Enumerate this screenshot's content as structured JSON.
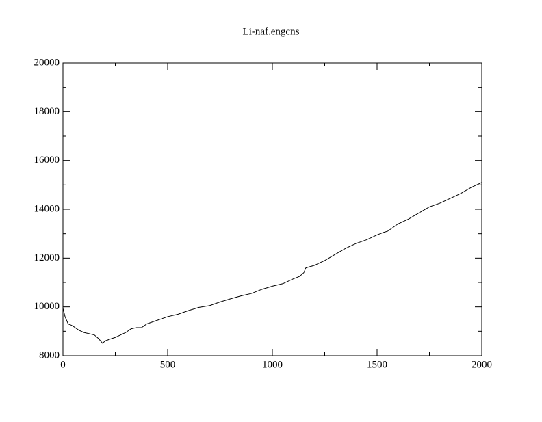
{
  "chart_data": {
    "type": "line",
    "title": "Li-naf.engcns",
    "x": [
      0,
      10,
      25,
      40,
      50,
      75,
      100,
      125,
      150,
      170,
      190,
      200,
      225,
      250,
      275,
      300,
      325,
      350,
      375,
      400,
      450,
      500,
      550,
      600,
      650,
      700,
      750,
      800,
      850,
      900,
      950,
      1000,
      1050,
      1100,
      1130,
      1150,
      1160,
      1200,
      1250,
      1300,
      1350,
      1400,
      1450,
      1500,
      1530,
      1550,
      1600,
      1650,
      1700,
      1750,
      1800,
      1850,
      1900,
      1950,
      2000
    ],
    "series": [
      {
        "color": "#000000",
        "values": [
          9950,
          9600,
          9300,
          9250,
          9200,
          9050,
          8950,
          8900,
          8850,
          8700,
          8500,
          8600,
          8680,
          8750,
          8850,
          8950,
          9100,
          9150,
          9150,
          9300,
          9450,
          9600,
          9700,
          9850,
          9980,
          10050,
          10200,
          10330,
          10450,
          10550,
          10720,
          10850,
          10950,
          11150,
          11250,
          11400,
          11600,
          11700,
          11900,
          12150,
          12400,
          12600,
          12750,
          12950,
          13050,
          13100,
          13400,
          13600,
          13850,
          14100,
          14250,
          14450,
          14650,
          14900,
          15100
        ]
      }
    ],
    "xlim": [
      0,
      2000
    ],
    "xticks": [
      0,
      500,
      1000,
      1500,
      2000
    ],
    "xminorticks": [
      250,
      750,
      1250,
      1750
    ],
    "ylim": [
      8000,
      20000
    ],
    "yticks": [
      8000,
      10000,
      12000,
      14000,
      16000,
      18000,
      20000
    ],
    "yminorticks": [
      9000,
      11000,
      13000,
      15000,
      17000,
      19000
    ],
    "grid": false
  }
}
